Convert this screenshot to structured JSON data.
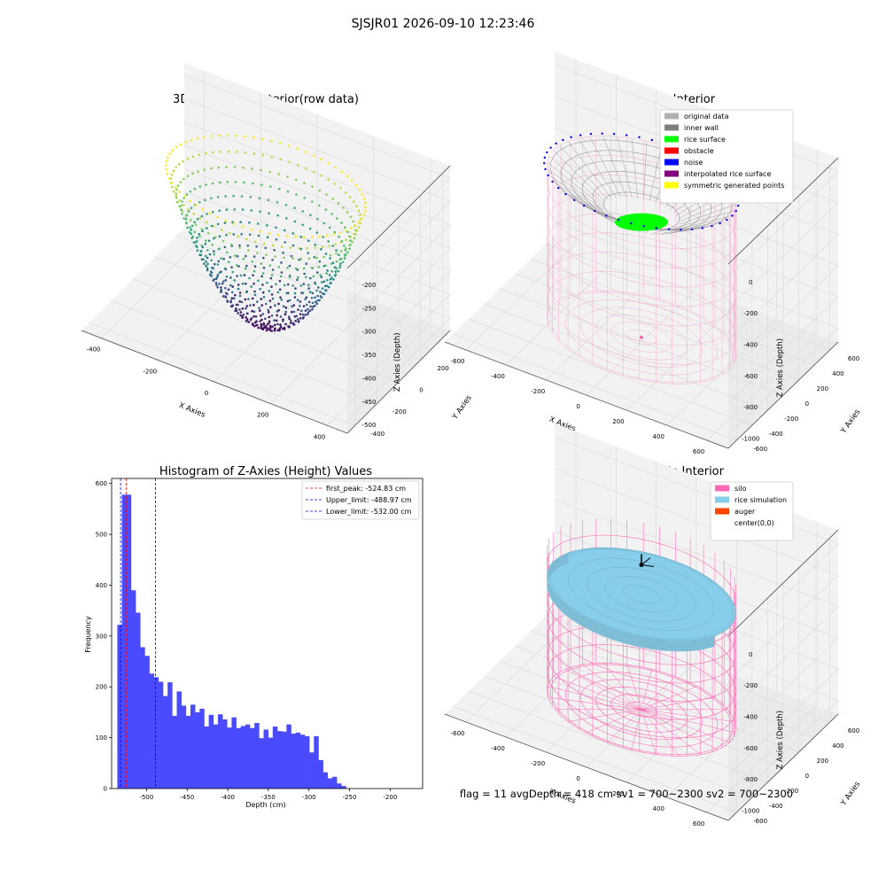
{
  "figure": {
    "suptitle": "SJSJR01 2026-09-10 12:23:46",
    "footer": "flag = 11   avgDepth = 418 cm  sv1 = 700~2300  sv2 = 700~2300"
  },
  "colors": {
    "pane": "#f2f2f2",
    "pane_side": "#ebebeb",
    "grid": "#dcdcdc",
    "silo": "#ff69b4",
    "rice_sim": "#87ceeb",
    "auger": "#ff4500",
    "hist_bar": "#4a4aff",
    "peak_line": "#ff0000",
    "limit_line": "#0000cc"
  },
  "panels": {
    "raw": {
      "title": "3D Plot of Silo Interior(row data)",
      "xlabel": "X Axies",
      "ylabel": "Y Axies",
      "zlabel": "Z Axies (Depth)",
      "xticks": [
        "-400",
        "-200",
        "0",
        "200",
        "400"
      ],
      "yticks": [
        "400",
        "200",
        "0",
        "-200",
        "-400"
      ],
      "zticks": [
        "-200",
        "-250",
        "-300",
        "-350",
        "-400",
        "-450",
        "-500"
      ]
    },
    "classify": {
      "title": "3D classify of Silo Interior",
      "xlabel": "X Axies",
      "ylabel": "Y Axies",
      "zlabel": "Z Axies (Depth)",
      "xticks": [
        "-600",
        "-400",
        "-200",
        "0",
        "200",
        "400",
        "600"
      ],
      "yticks": [
        "600",
        "400",
        "200",
        "0",
        "-200",
        "-400",
        "-600"
      ],
      "zticks": [
        "0",
        "-200",
        "-400",
        "-600",
        "-800",
        "-1000"
      ],
      "legend": [
        {
          "label": "original data",
          "color": "#b0b0b0"
        },
        {
          "label": "inner wall",
          "color": "#808080"
        },
        {
          "label": "rice surface",
          "color": "#00ff00"
        },
        {
          "label": "obstacle",
          "color": "#ff0000"
        },
        {
          "label": "noise",
          "color": "#0000ff"
        },
        {
          "label": "interpolated rice surface",
          "color": "#800080"
        },
        {
          "label": "symmetric generated points",
          "color": "#ffff00"
        }
      ]
    },
    "simulation": {
      "title": "3D simulation of Silo Interior",
      "xlabel": "X Axies",
      "ylabel": "Y Axies",
      "zlabel": "Z Axies (Depth)",
      "xticks": [
        "-600",
        "-400",
        "-200",
        "0",
        "200",
        "400",
        "600"
      ],
      "yticks": [
        "600",
        "400",
        "200",
        "0",
        "-200",
        "-400",
        "-600"
      ],
      "zticks": [
        "0",
        "-200",
        "-400",
        "-600",
        "-800",
        "-1000"
      ],
      "legend": [
        {
          "label": "silo",
          "color": "#ff69b4"
        },
        {
          "label": "rice simulation",
          "color": "#87ceeb"
        },
        {
          "label": "auger",
          "color": "#ff4500"
        },
        {
          "label": "center(0,0)",
          "color": "#ffffff"
        }
      ]
    }
  },
  "chart_data": {
    "type": "bar",
    "title": "Histogram of Z-Axies (Height) Values",
    "xlabel": "Depth (cm)",
    "ylabel": "Frequency",
    "xlim": [
      -543,
      -160
    ],
    "ylim": [
      0,
      610
    ],
    "xticks": [
      -500,
      -450,
      -400,
      -350,
      -300,
      -250,
      -200
    ],
    "yticks": [
      0,
      100,
      200,
      300,
      400,
      500,
      600
    ],
    "bin_start": -536,
    "bin_width": 5.63,
    "values": [
      322,
      578,
      578,
      390,
      346,
      278,
      261,
      226,
      219,
      210,
      182,
      209,
      143,
      191,
      163,
      143,
      165,
      150,
      157,
      122,
      145,
      126,
      146,
      136,
      120,
      140,
      119,
      123,
      126,
      119,
      129,
      99,
      116,
      100,
      122,
      113,
      112,
      126,
      108,
      110,
      106,
      103,
      71,
      103,
      56,
      32,
      20,
      23,
      10,
      5
    ],
    "vlines": [
      {
        "label": "first_peak: -524.83 cm",
        "x": -524.83,
        "color": "#ff0000"
      },
      {
        "label": "Upper_limit: -488.97 cm",
        "x": -488.97,
        "color": "#0000cc"
      },
      {
        "label": "Lower_limit: -532.00 cm",
        "x": -532.0,
        "color": "#0000cc"
      }
    ]
  }
}
